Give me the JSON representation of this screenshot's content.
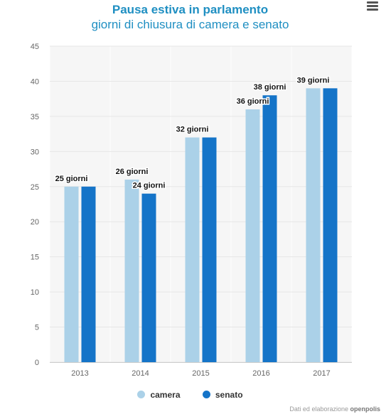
{
  "header": {
    "title": "Pausa estiva in parlamento",
    "subtitle": "giorni di chiusura di camera e senato",
    "menu_icon": "hamburger-menu-icon"
  },
  "chart_data": {
    "type": "bar",
    "title": "Pausa estiva in parlamento",
    "subtitle": "giorni di chiusura di camera e senato",
    "categories": [
      "2013",
      "2014",
      "2015",
      "2016",
      "2017"
    ],
    "series": [
      {
        "name": "camera",
        "color": "#abd1e8",
        "values": [
          25,
          26,
          32,
          36,
          39
        ],
        "labels": [
          "25 giorni",
          "26 giorni",
          "32 giorni",
          "36 giorni",
          "39 giorni"
        ]
      },
      {
        "name": "senato",
        "color": "#1574c8",
        "values": [
          25,
          24,
          32,
          38,
          39
        ],
        "labels": [
          "",
          "24 giorni",
          "",
          "38 giorni",
          ""
        ]
      }
    ],
    "ylim": [
      0,
      45
    ],
    "yticks": [
      0,
      5,
      10,
      15,
      20,
      25,
      30,
      35,
      40,
      45
    ],
    "grid": true,
    "legend_position": "bottom-center",
    "xlabel": "",
    "ylabel": ""
  },
  "credits": {
    "prefix": "Dati ed elaborazione",
    "brand": "openpolis"
  }
}
